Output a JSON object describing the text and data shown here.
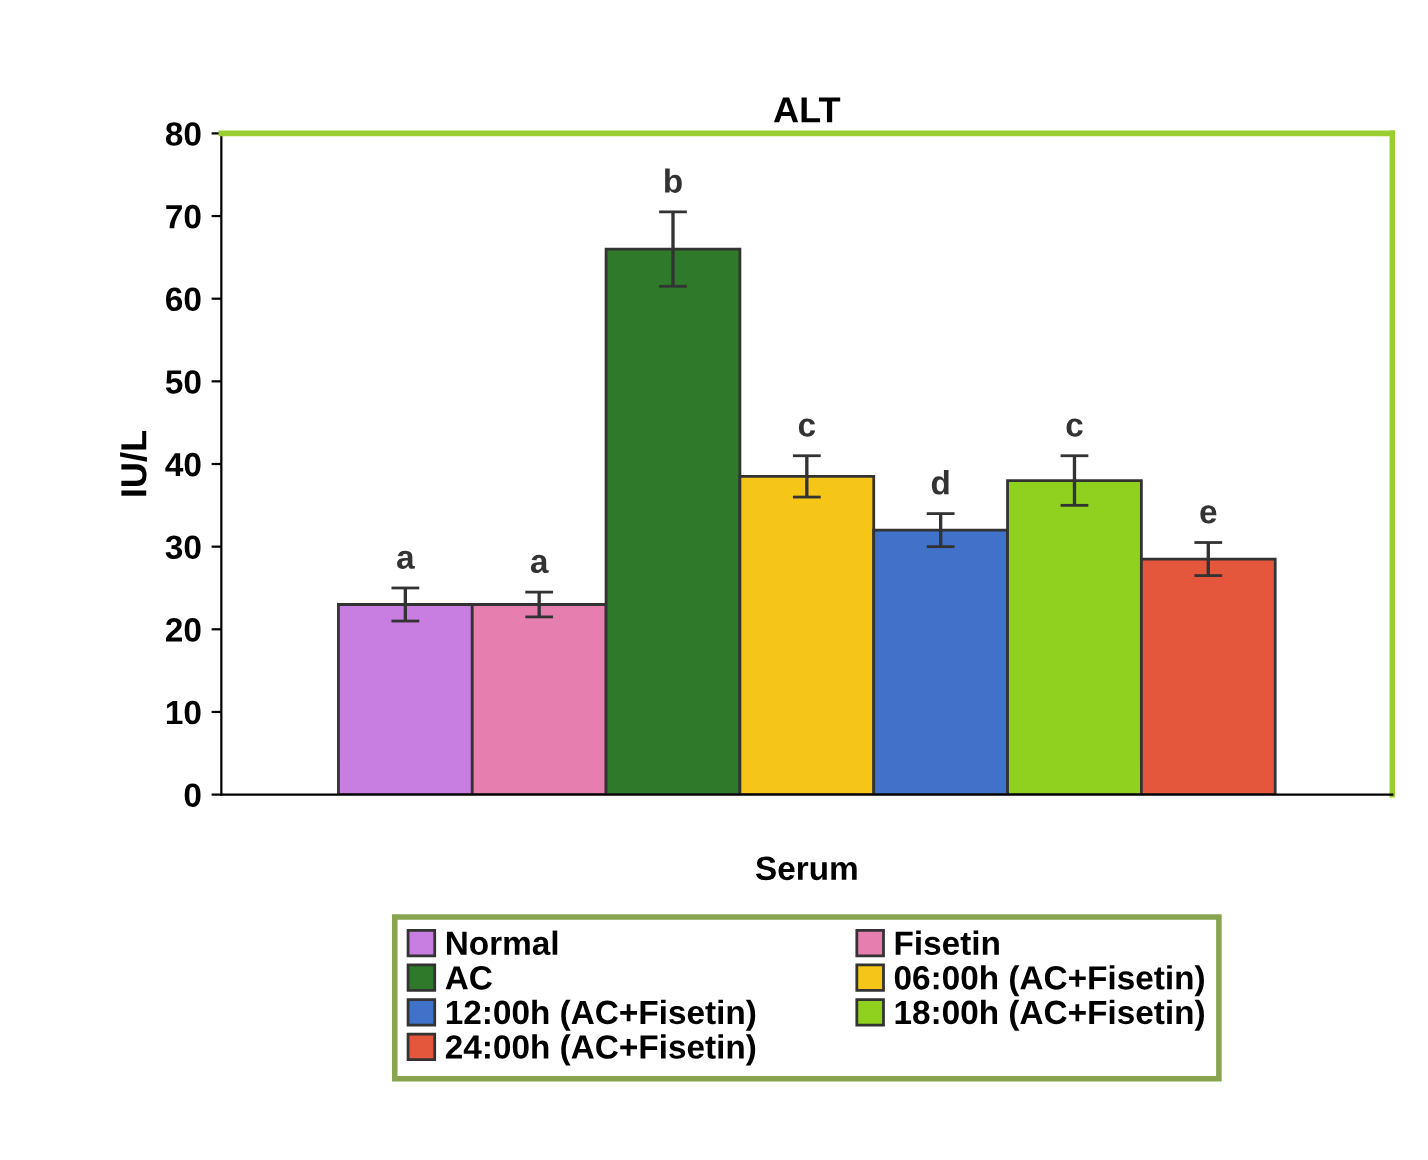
{
  "chart_data": {
    "type": "bar",
    "title": "ALT",
    "ylabel": "IU/L",
    "categories": [
      "Serum"
    ],
    "ylim": [
      0,
      80
    ],
    "yticks": [
      0,
      10,
      20,
      30,
      40,
      50,
      60,
      70,
      80
    ],
    "grid": false,
    "legend": "bottom",
    "series": [
      {
        "name": "Normal",
        "color": "#c77ee0",
        "values": [
          23
        ],
        "errors": [
          2
        ],
        "value_labels": [
          "a"
        ]
      },
      {
        "name": "Fisetin",
        "color": "#e67fb0",
        "values": [
          23
        ],
        "errors": [
          1.5
        ],
        "value_labels": [
          "a"
        ]
      },
      {
        "name": "AC",
        "color": "#2f7a2a",
        "values": [
          66
        ],
        "errors": [
          4.5
        ],
        "value_labels": [
          "b"
        ]
      },
      {
        "name": "06:00h (AC+Fisetin)",
        "color": "#f5c518",
        "values": [
          38.5
        ],
        "errors": [
          2.5
        ],
        "value_labels": [
          "c"
        ]
      },
      {
        "name": "12:00h (AC+Fisetin)",
        "color": "#3f72c8",
        "values": [
          32
        ],
        "errors": [
          2
        ],
        "value_labels": [
          "d"
        ]
      },
      {
        "name": "18:00h (AC+Fisetin)",
        "color": "#8fd11e",
        "values": [
          38
        ],
        "errors": [
          3
        ],
        "value_labels": [
          "c"
        ]
      },
      {
        "name": "24:00h (AC+Fisetin)",
        "color": "#e5573d",
        "values": [
          28.5
        ],
        "errors": [
          2
        ],
        "value_labels": [
          "e"
        ]
      }
    ]
  }
}
